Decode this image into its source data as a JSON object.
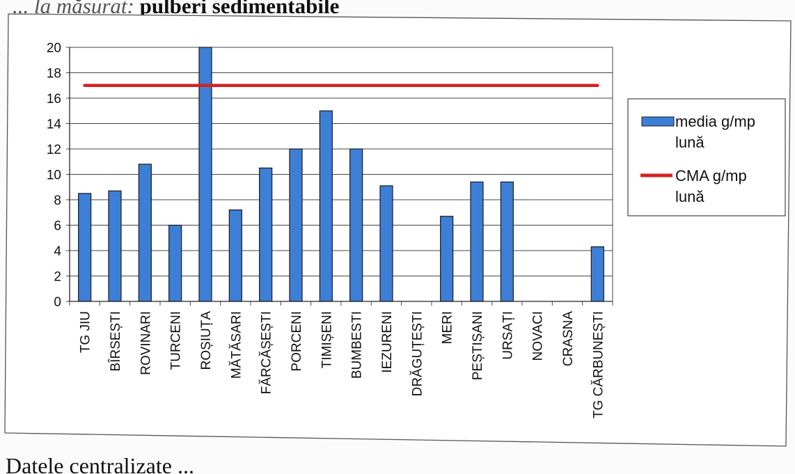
{
  "captions": {
    "top_faded": "... la măsurat:",
    "top_bold": "pulberi sedimentabile",
    "bottom": "Datele centralizate ..."
  },
  "chart_data": {
    "type": "bar",
    "categories": [
      "TG JIU",
      "BÎRSEȘTI",
      "ROVINARI",
      "TURCENI",
      "ROȘIUȚA",
      "MĂTĂSARI",
      "FĂRCĂȘEȘTI",
      "PORCENI",
      "TIMIȘENI",
      "BUMBESTI",
      "IEZURENI",
      "DRĂGUȚEȘTI",
      "MERI",
      "PEȘTIȘANI",
      "URSAȚI",
      "NOVACI",
      "CRASNA",
      "TG CĂRBUNEȘTI"
    ],
    "series": [
      {
        "name": "media g/mp lună",
        "type": "bar",
        "color": "#3d7fd6",
        "values": [
          8.5,
          8.7,
          10.8,
          6.0,
          20.0,
          7.2,
          10.5,
          12.0,
          15.0,
          12.0,
          9.1,
          0,
          6.7,
          9.4,
          9.4,
          0,
          0,
          4.3
        ]
      },
      {
        "name": "CMA g/mp lună",
        "type": "line",
        "color": "#d62020",
        "values": [
          17,
          17,
          17,
          17,
          17,
          17,
          17,
          17,
          17,
          17,
          17,
          17,
          17,
          17,
          17,
          17,
          17,
          17
        ]
      }
    ],
    "yticks": [
      0,
      2,
      4,
      6,
      8,
      10,
      12,
      14,
      16,
      18,
      20
    ],
    "ylim": [
      0,
      20
    ],
    "grid": true,
    "legend_position": "right"
  }
}
